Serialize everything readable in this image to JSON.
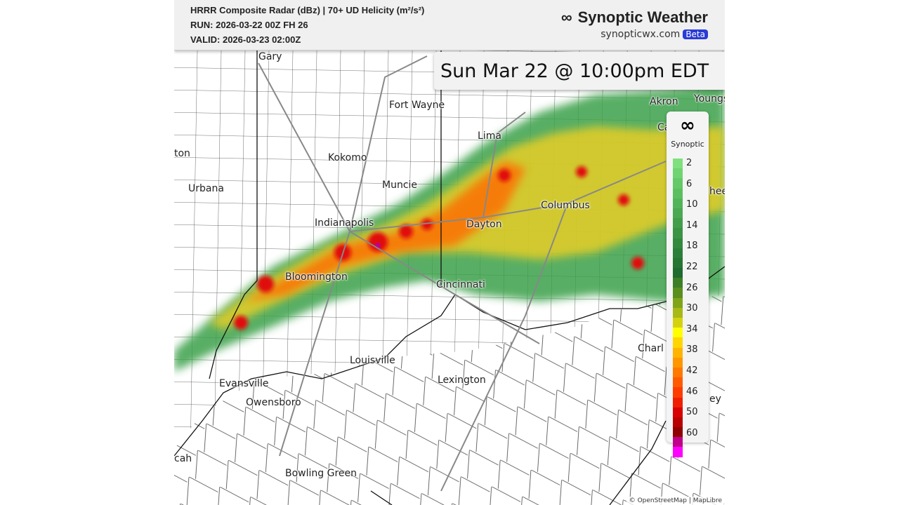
{
  "header": {
    "title": "HRRR Composite Radar (dBz) | 70+ UD Helicity (m²/s²)",
    "run": "RUN: 2026-03-22 00Z FH 26",
    "valid": "VALID: 2026-03-23 02:00Z",
    "brand": "Synoptic Weather",
    "site": "synopticwx.com",
    "badge": "Beta",
    "logo_icon": "infinity-icon"
  },
  "time_label": "Sun Mar 22 @ 10:00pm EDT",
  "cities": [
    {
      "name": "Gary"
    },
    {
      "name": "Fort Wayne"
    },
    {
      "name": "Akron"
    },
    {
      "name": "Youngs"
    },
    {
      "name": "Lima"
    },
    {
      "name": "Kokomo"
    },
    {
      "name": "Muncie"
    },
    {
      "name": "Urbana"
    },
    {
      "name": "ton"
    },
    {
      "name": "Indianapolis"
    },
    {
      "name": "Dayton"
    },
    {
      "name": "Columbus"
    },
    {
      "name": "Bloomington"
    },
    {
      "name": "Cincinnati"
    },
    {
      "name": "Louisville"
    },
    {
      "name": "Lexington"
    },
    {
      "name": "Evansville"
    },
    {
      "name": "Owensboro"
    },
    {
      "name": "Bowling Green"
    },
    {
      "name": "Charl"
    },
    {
      "name": "cah"
    },
    {
      "name": "ey"
    },
    {
      "name": "Ca"
    },
    {
      "name": "hee"
    }
  ],
  "legend": {
    "title": "Synoptic",
    "labels": [
      "2",
      "6",
      "10",
      "14",
      "18",
      "22",
      "26",
      "30",
      "34",
      "38",
      "42",
      "46",
      "50",
      "60"
    ],
    "colors": [
      "#7ee07e",
      "#6fd471",
      "#64c968",
      "#5bbf60",
      "#52b459",
      "#4aa952",
      "#429e4b",
      "#3a9444",
      "#33893e",
      "#2c7f38",
      "#267533",
      "#206b2e",
      "#3d7f26",
      "#5a8f1e",
      "#7fa41a",
      "#a8b816",
      "#d4d20f",
      "#ffff00",
      "#ffd500",
      "#ffb400",
      "#ff9600",
      "#ff7800",
      "#ff5a00",
      "#ff3c00",
      "#f01e00",
      "#d80000",
      "#b80000",
      "#900000",
      "#c0008a",
      "#ff00ff"
    ]
  },
  "attribution": "© OpenStreetMap | MapLibre"
}
